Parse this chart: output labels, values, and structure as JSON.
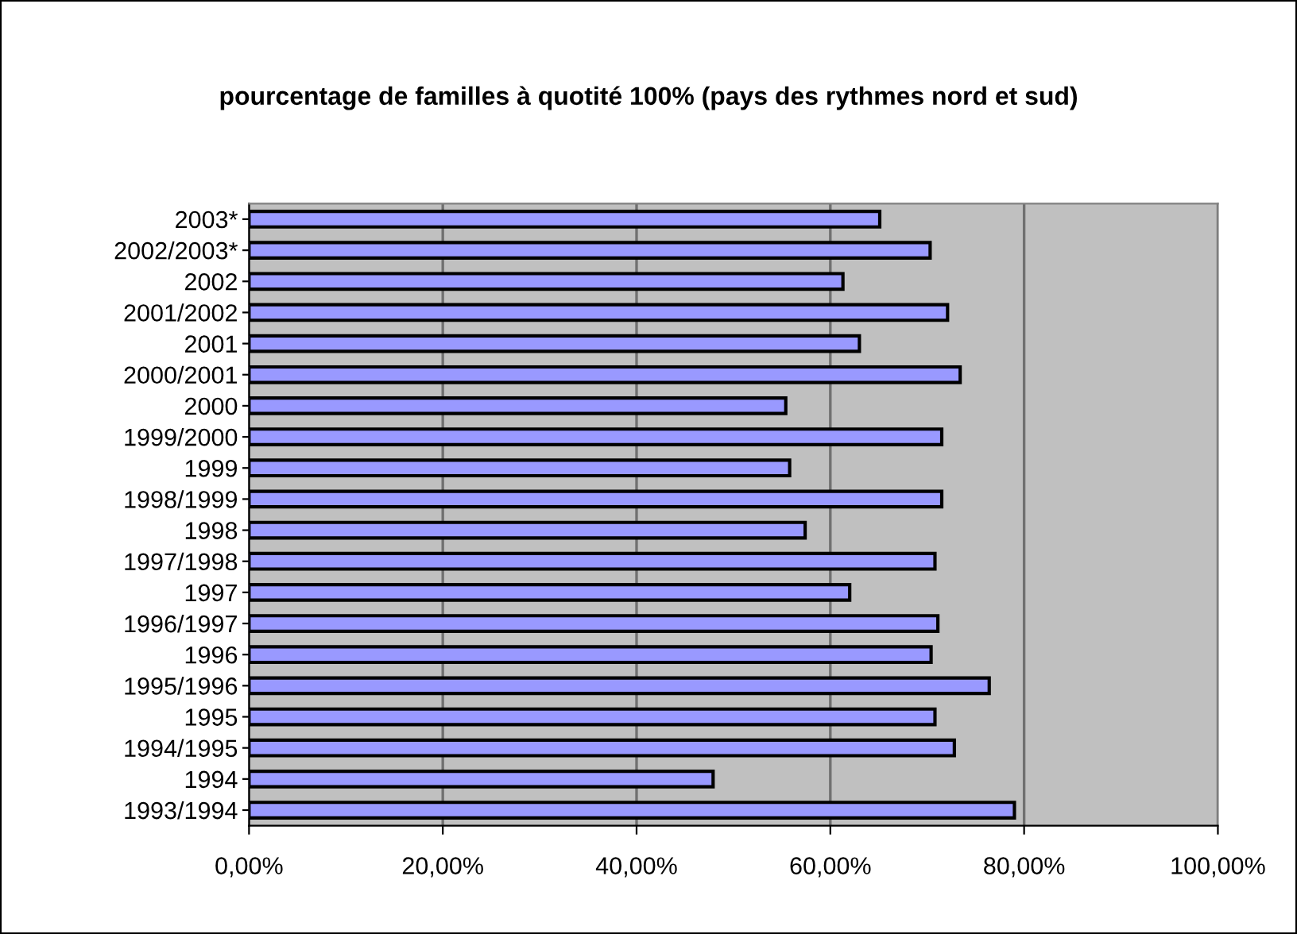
{
  "chart_data": {
    "type": "bar",
    "orientation": "horizontal",
    "title": "pourcentage de familles à quotité 100% (pays des rythmes nord et sud)",
    "categories": [
      "2003*",
      "2002/2003*",
      "2002",
      "2001/2002",
      "2001",
      "2000/2001",
      "2000",
      "1999/2000",
      "1999",
      "1998/1999",
      "1998",
      "1997/1998",
      "1997",
      "1996/1997",
      "1996",
      "1995/1996",
      "1995",
      "1994/1995",
      "1994",
      "1993/1994"
    ],
    "series": [
      {
        "color": "#9999ff",
        "values": [
          65.1,
          70.3,
          61.3,
          72.1,
          63.0,
          73.4,
          55.4,
          71.5,
          55.8,
          71.5,
          57.4,
          70.8,
          62.0,
          71.1,
          70.4,
          76.4,
          70.8,
          72.8,
          47.9,
          79.0
        ]
      }
    ],
    "xlim": [
      0,
      100
    ],
    "xticks": [
      {
        "value": 0,
        "label": "0,00%"
      },
      {
        "value": 20,
        "label": "20,00%"
      },
      {
        "value": 40,
        "label": "40,00%"
      },
      {
        "value": 60,
        "label": "60,00%"
      },
      {
        "value": 80,
        "label": "80,00%"
      },
      {
        "value": 100,
        "label": "100,00%"
      }
    ],
    "grid": "x",
    "legend": false
  }
}
